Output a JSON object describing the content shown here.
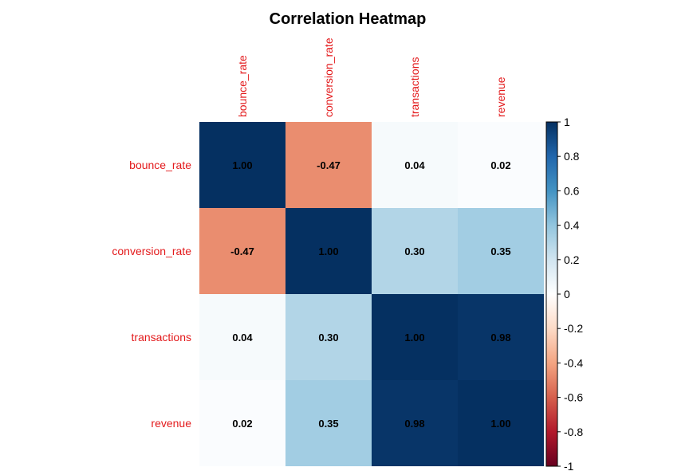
{
  "chart_data": {
    "type": "heatmap",
    "title": "Correlation Heatmap",
    "variables": [
      "bounce_rate",
      "conversion_rate",
      "transactions",
      "revenue"
    ],
    "values": [
      [
        1.0,
        -0.47,
        0.04,
        0.02
      ],
      [
        -0.47,
        1.0,
        0.3,
        0.35
      ],
      [
        0.04,
        0.3,
        1.0,
        0.98
      ],
      [
        0.02,
        0.35,
        0.98,
        1.0
      ]
    ],
    "value_labels": [
      [
        "1.00",
        "-0.47",
        "0.04",
        "0.02"
      ],
      [
        "-0.47",
        "1.00",
        "0.30",
        "0.35"
      ],
      [
        "0.04",
        "0.30",
        "1.00",
        "0.98"
      ],
      [
        "0.02",
        "0.35",
        "0.98",
        "1.00"
      ]
    ],
    "colorbar": {
      "range": [
        -1,
        1
      ],
      "ticks": [
        1,
        0.8,
        0.6,
        0.4,
        0.2,
        0,
        -0.2,
        -0.4,
        -0.6,
        -0.8,
        -1
      ],
      "tick_labels": [
        "1",
        "0.8",
        "0.6",
        "0.4",
        "0.2",
        "0",
        "-0.2",
        "-0.4",
        "-0.6",
        "-0.8",
        "-1"
      ],
      "colors": [
        "#67001F",
        "#B2182B",
        "#D6604D",
        "#F4A582",
        "#FDDBC7",
        "#FFFFFF",
        "#D1E5F0",
        "#92C5DE",
        "#4393C3",
        "#2166AC",
        "#053061"
      ]
    },
    "label_color": "#E31A1C",
    "legend": "right"
  }
}
